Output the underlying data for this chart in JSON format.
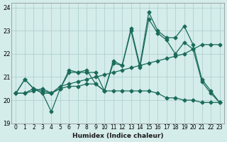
{
  "xlabel": "Humidex (Indice chaleur)",
  "ylabel": "",
  "background_color": "#d4ecea",
  "grid_color": "#aacccc",
  "line_color": "#1a6b5a",
  "xlim": [
    -0.5,
    23.5
  ],
  "ylim": [
    19,
    24.2
  ],
  "yticks": [
    19,
    20,
    21,
    22,
    23,
    24
  ],
  "xtick_labels": [
    "0",
    "1",
    "2",
    "3",
    "4",
    "5",
    "6",
    "7",
    "8",
    "9",
    "10",
    "11",
    "12",
    "13",
    "14",
    "15",
    "16",
    "17",
    "18",
    "19",
    "20",
    "21",
    "22",
    "23"
  ],
  "line1": [
    20.3,
    20.9,
    20.5,
    20.3,
    19.5,
    20.5,
    21.3,
    21.2,
    21.3,
    20.7,
    20.4,
    21.7,
    21.5,
    23.1,
    21.5,
    23.8,
    23.0,
    22.7,
    22.7,
    23.2,
    22.4,
    20.9,
    20.4,
    19.9
  ],
  "line2": [
    20.3,
    20.9,
    20.5,
    20.3,
    20.3,
    20.5,
    21.2,
    21.2,
    21.2,
    21.2,
    20.4,
    21.6,
    21.5,
    23.0,
    21.4,
    23.5,
    22.9,
    22.6,
    22.0,
    22.5,
    22.2,
    20.8,
    20.3,
    19.9
  ],
  "line3": [
    20.3,
    20.3,
    20.5,
    20.4,
    20.3,
    20.5,
    20.6,
    20.6,
    20.7,
    20.7,
    20.4,
    20.4,
    20.4,
    20.4,
    20.4,
    20.4,
    20.3,
    20.1,
    20.1,
    20.0,
    20.0,
    19.9,
    19.9,
    19.9
  ],
  "line4": [
    20.3,
    20.3,
    20.4,
    20.5,
    20.3,
    20.6,
    20.7,
    20.8,
    20.9,
    21.0,
    21.1,
    21.2,
    21.3,
    21.4,
    21.5,
    21.6,
    21.7,
    21.8,
    21.9,
    22.0,
    22.2,
    22.4,
    22.4,
    22.4
  ]
}
